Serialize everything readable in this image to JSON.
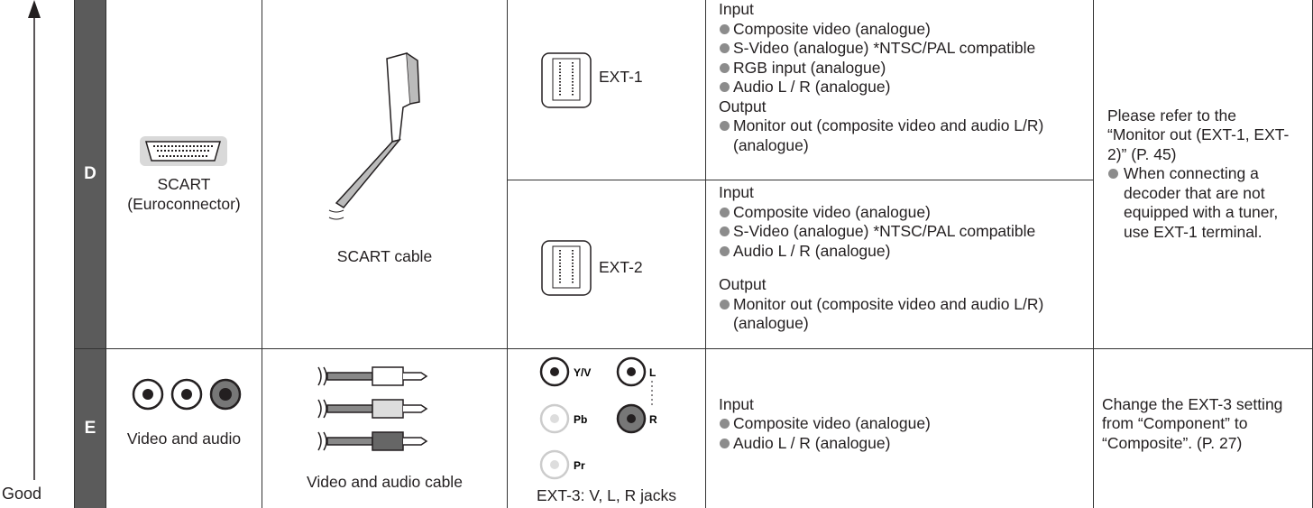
{
  "side_label": "Good",
  "rows": [
    {
      "letter": "D",
      "connector": {
        "label": [
          "SCART",
          "(Euroconnector)"
        ]
      },
      "cable": "SCART cable",
      "terminals": [
        {
          "name": "EXT-1",
          "input_heading": "Input",
          "inputs": [
            "Composite video (analogue)",
            "S-Video (analogue) *NTSC/PAL compatible",
            "RGB input (analogue)",
            "Audio L / R (analogue)"
          ],
          "output_heading": "Output",
          "outputs": [
            "Monitor out (composite video and audio L/R) (analogue)"
          ]
        },
        {
          "name": "EXT-2",
          "input_heading": "Input",
          "inputs": [
            "Composite video (analogue)",
            "S-Video (analogue) *NTSC/PAL compatible",
            "Audio L / R (analogue)"
          ],
          "output_heading": "Output",
          "outputs": [
            "Monitor out (composite video and audio L/R) (analogue)"
          ]
        }
      ],
      "note": {
        "text": "Please refer to the “Monitor out (EXT-1, EXT-2)” (P. 45)",
        "bullets": [
          "When connecting a decoder that are not equipped with a tuner, use EXT-1 terminal."
        ]
      }
    },
    {
      "letter": "E",
      "connector": {
        "label": [
          "Video and audio"
        ]
      },
      "cable": "Video and audio cable",
      "terminal": {
        "jack_labels": [
          "Y/V",
          "L",
          "Pb",
          "R",
          "Pr"
        ],
        "caption": "EXT-3: V, L, R jacks",
        "input_heading": "Input",
        "inputs": [
          "Composite video (analogue)",
          "Audio L / R (analogue)"
        ]
      },
      "note": {
        "text": "Change the EXT-3 setting from “Component” to “Composite”. (P. 27)"
      }
    }
  ]
}
